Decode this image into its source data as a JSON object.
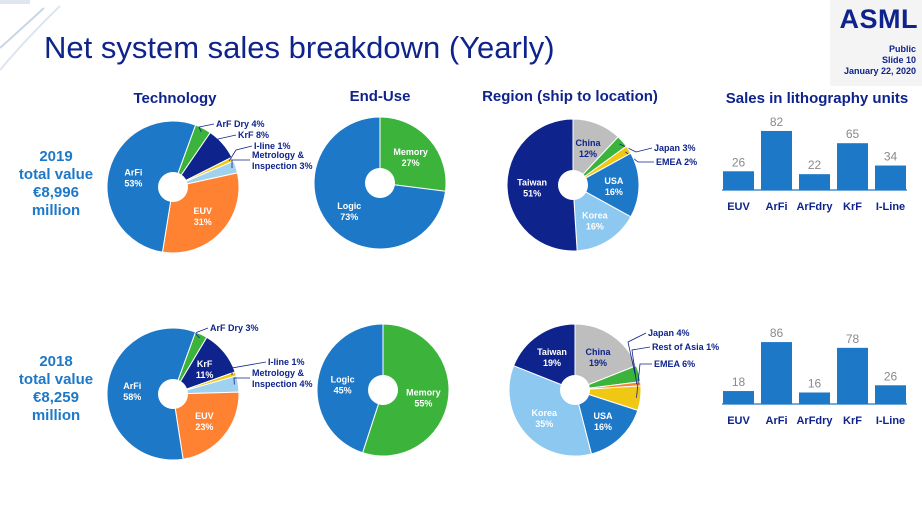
{
  "header": {
    "title": "Net system sales breakdown (Yearly)",
    "logo": "ASML",
    "classification": "Public",
    "slide": "Slide 10",
    "date": "January 22, 2020"
  },
  "columns": {
    "technology": "Technology",
    "end_use": "End-Use",
    "region": "Region (ship to location)",
    "units": "Sales in lithography units"
  },
  "years": [
    {
      "year": "2019",
      "line1": "total value",
      "line2": "€8,996",
      "line3": "million"
    },
    {
      "year": "2018",
      "line1": "total value",
      "line2": "€8,259",
      "line3": "million"
    }
  ],
  "chart_data": [
    {
      "id": "tech-2019",
      "type": "pie",
      "slices": [
        {
          "label": "ArF Dry 4%",
          "value": 4,
          "color": "#3cb43c"
        },
        {
          "label": "KrF 8%",
          "value": 8,
          "color": "#0f238c"
        },
        {
          "label": "I-line 1%",
          "value": 1,
          "color": "#f0c814"
        },
        {
          "label": "Metrology & Inspection 3%",
          "value": 3,
          "color": "#a0d2f0"
        },
        {
          "label": "EUV 31%",
          "value": 31,
          "color": "#ff8232"
        },
        {
          "label": "ArFi 53%",
          "value": 53,
          "color": "#1e78c8"
        }
      ]
    },
    {
      "id": "enduse-2019",
      "type": "pie",
      "slices": [
        {
          "label": "Memory 27%",
          "value": 27,
          "color": "#3cb43c"
        },
        {
          "label": "Logic 73%",
          "value": 73,
          "color": "#1e78c8"
        }
      ]
    },
    {
      "id": "region-2019",
      "type": "pie",
      "slices": [
        {
          "label": "China 12%",
          "value": 12,
          "color": "#bebebe"
        },
        {
          "label": "Japan 3%",
          "value": 3,
          "color": "#3cb43c"
        },
        {
          "label": "EMEA 2%",
          "value": 2,
          "color": "#f0c814"
        },
        {
          "label": "USA 16%",
          "value": 16,
          "color": "#1e78c8"
        },
        {
          "label": "Korea 16%",
          "value": 16,
          "color": "#8cc8f0"
        },
        {
          "label": "Taiwan 51%",
          "value": 51,
          "color": "#0f238c"
        }
      ]
    },
    {
      "id": "units-2019",
      "type": "bar",
      "categories": [
        "EUV",
        "ArFi",
        "ArFdry",
        "KrF",
        "I-Line"
      ],
      "values": [
        26,
        82,
        22,
        65,
        34
      ],
      "ylim": [
        0,
        100
      ]
    },
    {
      "id": "tech-2018",
      "type": "pie",
      "slices": [
        {
          "label": "ArF Dry 3%",
          "value": 3,
          "color": "#3cb43c"
        },
        {
          "label": "KrF 11%",
          "value": 11,
          "color": "#0f238c"
        },
        {
          "label": "I-line 1%",
          "value": 1,
          "color": "#f0c814"
        },
        {
          "label": "Metrology & Inspection 4%",
          "value": 4,
          "color": "#a0d2f0"
        },
        {
          "label": "EUV 23%",
          "value": 23,
          "color": "#ff8232"
        },
        {
          "label": "ArFi 58%",
          "value": 58,
          "color": "#1e78c8"
        }
      ]
    },
    {
      "id": "enduse-2018",
      "type": "pie",
      "slices": [
        {
          "label": "Memory 55%",
          "value": 55,
          "color": "#3cb43c"
        },
        {
          "label": "Logic 45%",
          "value": 45,
          "color": "#1e78c8"
        }
      ]
    },
    {
      "id": "region-2018",
      "type": "pie",
      "slices": [
        {
          "label": "China 19%",
          "value": 19,
          "color": "#bebebe"
        },
        {
          "label": "Japan 4%",
          "value": 4,
          "color": "#3cb43c"
        },
        {
          "label": "Rest of Asia 1%",
          "value": 1,
          "color": "#ff8232"
        },
        {
          "label": "EMEA 6%",
          "value": 6,
          "color": "#f0c814"
        },
        {
          "label": "USA 16%",
          "value": 16,
          "color": "#1e78c8"
        },
        {
          "label": "Korea 35%",
          "value": 35,
          "color": "#8cc8f0"
        },
        {
          "label": "Taiwan 19%",
          "value": 19,
          "color": "#0f238c"
        }
      ]
    },
    {
      "id": "units-2018",
      "type": "bar",
      "categories": [
        "EUV",
        "ArFi",
        "ArFdry",
        "KrF",
        "I-Line"
      ],
      "values": [
        18,
        86,
        16,
        78,
        26
      ],
      "ylim": [
        0,
        100
      ]
    }
  ]
}
